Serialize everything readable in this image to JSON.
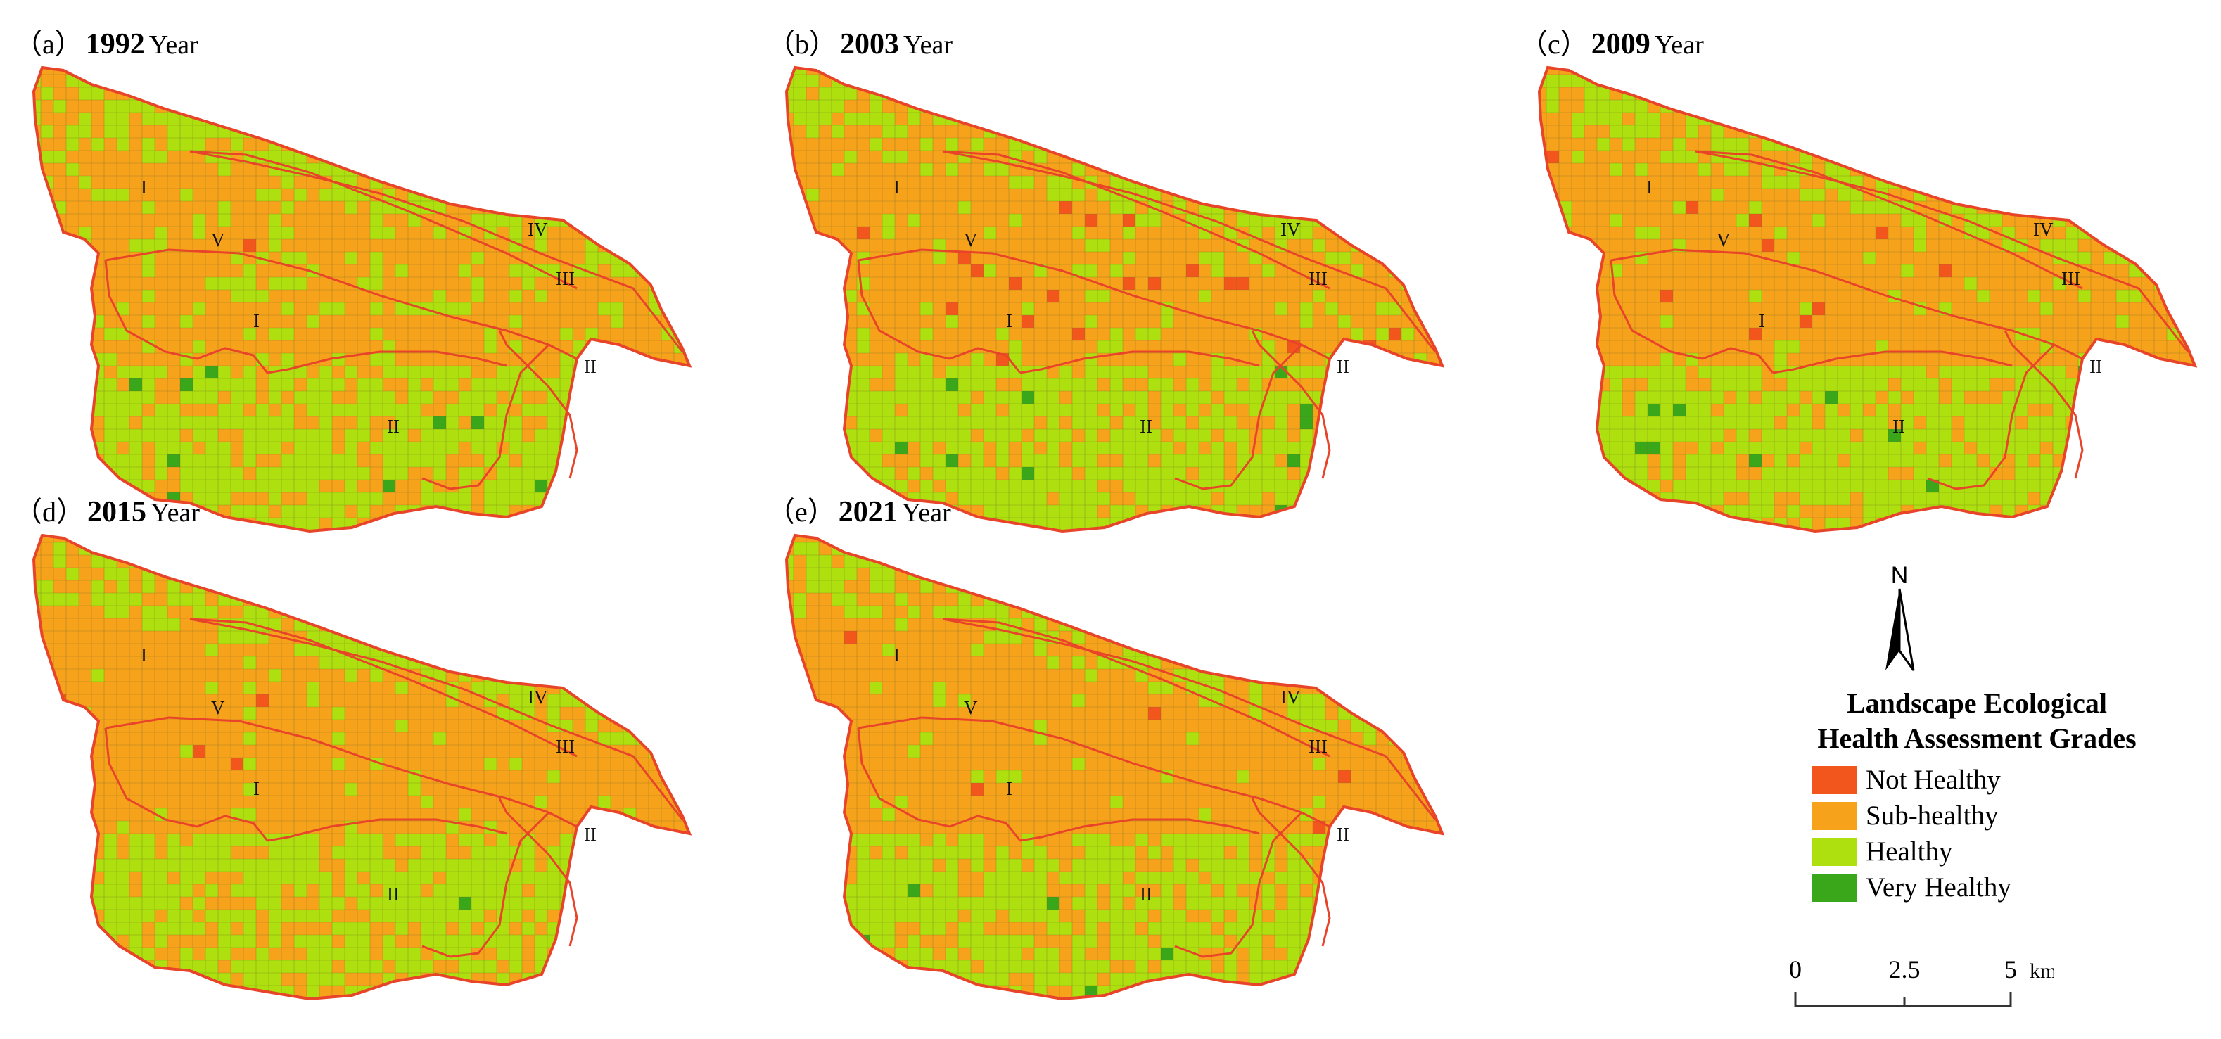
{
  "panels": [
    {
      "letter": "（a）",
      "year": "1992",
      "unit": "Year",
      "variant": 0
    },
    {
      "letter": "（b）",
      "year": "2003",
      "unit": "Year",
      "variant": 1
    },
    {
      "letter": "（c）",
      "year": "2009",
      "unit": "Year",
      "variant": 2
    },
    {
      "letter": "（d）",
      "year": "2015",
      "unit": "Year",
      "variant": 3
    },
    {
      "letter": "（e）",
      "year": "2021",
      "unit": "Year",
      "variant": 4
    }
  ],
  "zone_labels": [
    "I",
    "V",
    "IV",
    "III",
    "I",
    "II",
    "II"
  ],
  "legend": {
    "title_line1": "Landscape Ecological",
    "title_line2": "Health Assessment Grades",
    "items": [
      {
        "label": "Not Healthy",
        "color": "#f2561c"
      },
      {
        "label": "Sub-healthy",
        "color": "#f7a21b"
      },
      {
        "label": "Healthy",
        "color": "#aee00f"
      },
      {
        "label": "Very Healthy",
        "color": "#3aa61a"
      }
    ]
  },
  "north_arrow": {
    "label": "N"
  },
  "scale_bar": {
    "ticks": [
      "0",
      "2.5",
      "5"
    ],
    "unit": "km"
  },
  "colors": {
    "boundary": "#e8442a",
    "grid": "#6e6e2a"
  }
}
